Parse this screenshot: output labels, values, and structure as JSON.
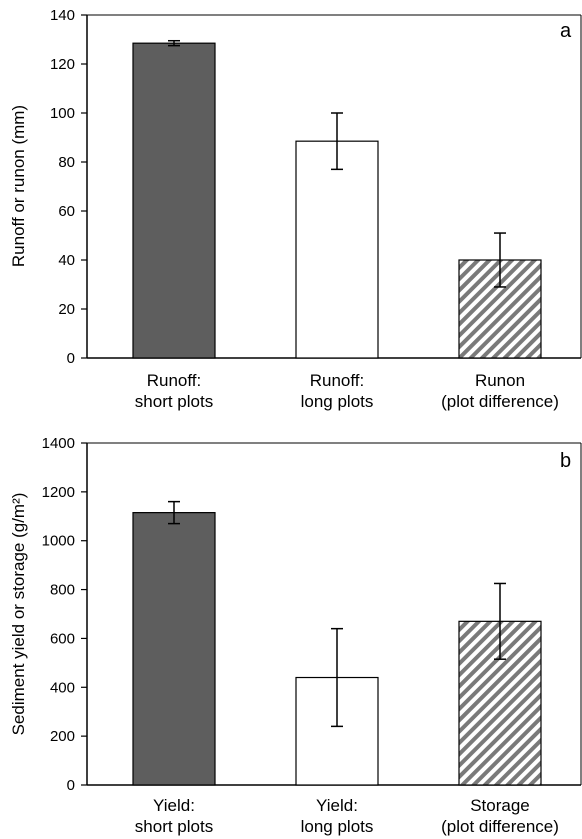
{
  "colors": {
    "dark_bar": "#5e5e5e",
    "light_bar": "#ffffff",
    "hatch_stripe": "#7a7a7a",
    "axis": "#000000"
  },
  "chart_data": [
    {
      "type": "bar",
      "panel_label": "a",
      "ylabel": "Runoff or runon (mm)",
      "ylim": [
        0,
        140
      ],
      "yticks": [
        "0",
        "20",
        "40",
        "60",
        "80",
        "100",
        "120",
        "140"
      ],
      "categories": [
        [
          "Runoff:",
          "short plots"
        ],
        [
          "Runoff:",
          "long plots"
        ],
        [
          "Runon",
          "(plot difference)"
        ]
      ],
      "values": [
        128.5,
        88.5,
        40
      ],
      "errors": [
        1,
        11.5,
        11
      ],
      "fills": [
        "dark",
        "white",
        "hatched"
      ]
    },
    {
      "type": "bar",
      "panel_label": "b",
      "ylabel": "Sediment yield or storage (g/m²)",
      "ylim": [
        0,
        1400
      ],
      "yticks": [
        "0",
        "200",
        "400",
        "600",
        "800",
        "1000",
        "1200",
        "1400"
      ],
      "categories": [
        [
          "Yield:",
          "short plots"
        ],
        [
          "Yield:",
          "long plots"
        ],
        [
          "Storage",
          "(plot difference)"
        ]
      ],
      "values": [
        1115,
        440,
        670
      ],
      "errors": [
        45,
        200,
        155
      ],
      "fills": [
        "dark",
        "white",
        "hatched"
      ]
    }
  ]
}
